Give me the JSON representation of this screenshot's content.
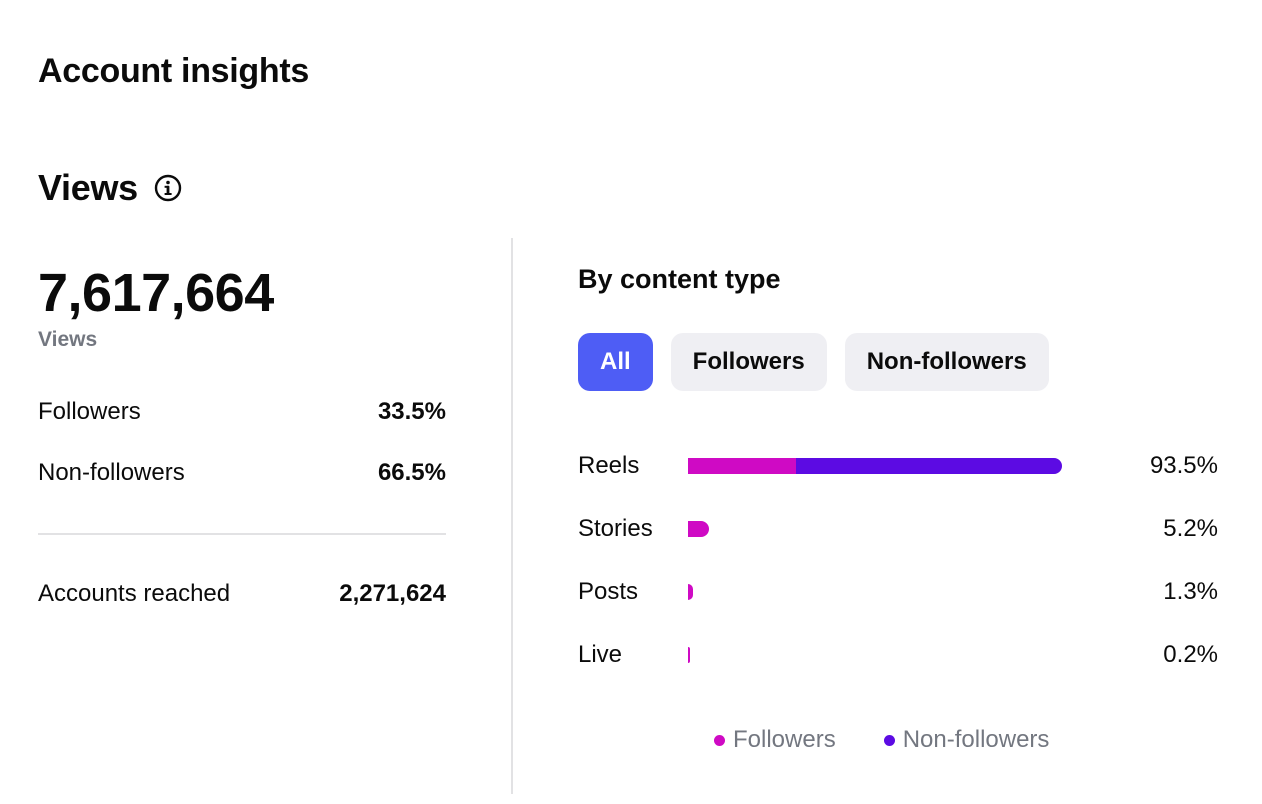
{
  "header": {
    "title": "Account insights"
  },
  "section": {
    "title": "Views",
    "info_icon": "info-icon"
  },
  "summary": {
    "total_views": "7,617,664",
    "total_label": "Views",
    "rows": [
      {
        "label": "Followers",
        "value": "33.5%"
      },
      {
        "label": "Non-followers",
        "value": "66.5%"
      }
    ],
    "reached": {
      "label": "Accounts reached",
      "value": "2,271,624"
    }
  },
  "content_type": {
    "title": "By content type",
    "tabs": [
      {
        "label": "All",
        "active": true
      },
      {
        "label": "Followers",
        "active": false
      },
      {
        "label": "Non-followers",
        "active": false
      }
    ]
  },
  "colors": {
    "followers": "#cf0ac4",
    "non_followers": "#5c0be3",
    "accent": "#4e5df5"
  },
  "chart_data": {
    "type": "bar",
    "orientation": "horizontal",
    "stacked": true,
    "categories": [
      "Reels",
      "Stories",
      "Posts",
      "Live"
    ],
    "values": [
      93.5,
      5.2,
      1.3,
      0.2
    ],
    "value_labels": [
      "93.5%",
      "5.2%",
      "1.3%",
      "0.2%"
    ],
    "series": [
      {
        "name": "Followers",
        "values": [
          27.1,
          5.2,
          1.3,
          0.2
        ]
      },
      {
        "name": "Non-followers",
        "values": [
          66.4,
          0,
          0,
          0
        ]
      }
    ],
    "xlim": [
      0,
      100
    ],
    "legend": "bottom",
    "grid": false
  }
}
